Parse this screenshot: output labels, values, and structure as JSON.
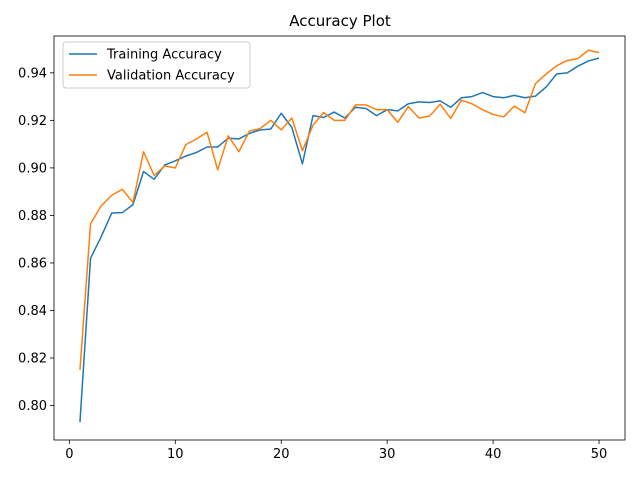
{
  "chart_data": {
    "type": "line",
    "title": "Accuracy Plot",
    "xlabel": "",
    "ylabel": "",
    "xlim": [
      -1.45,
      52.45
    ],
    "ylim": [
      0.7855,
      0.9555
    ],
    "xticks": [
      0,
      10,
      20,
      30,
      40,
      50
    ],
    "yticks": [
      0.8,
      0.82,
      0.84,
      0.86,
      0.88,
      0.9,
      0.92,
      0.94
    ],
    "ytick_labels": [
      "0.80",
      "0.82",
      "0.84",
      "0.86",
      "0.88",
      "0.90",
      "0.92",
      "0.94"
    ],
    "grid": false,
    "legend": "top-left",
    "x": [
      1,
      2,
      3,
      4,
      5,
      6,
      7,
      8,
      9,
      10,
      11,
      12,
      13,
      14,
      15,
      16,
      17,
      18,
      19,
      20,
      21,
      22,
      23,
      24,
      25,
      26,
      27,
      28,
      29,
      30,
      31,
      32,
      33,
      34,
      35,
      36,
      37,
      38,
      39,
      40,
      41,
      42,
      43,
      44,
      45,
      46,
      47,
      48,
      49,
      50
    ],
    "series": [
      {
        "name": "Training Accuracy",
        "color": "#1f77b4",
        "values": [
          0.793,
          0.862,
          0.871,
          0.881,
          0.8812,
          0.8845,
          0.8985,
          0.8952,
          0.9012,
          0.903,
          0.905,
          0.9065,
          0.9088,
          0.9088,
          0.9125,
          0.9122,
          0.9145,
          0.916,
          0.9163,
          0.923,
          0.917,
          0.9017,
          0.922,
          0.9212,
          0.9235,
          0.921,
          0.9255,
          0.925,
          0.922,
          0.9245,
          0.924,
          0.927,
          0.9278,
          0.9275,
          0.9282,
          0.9255,
          0.9295,
          0.93,
          0.9317,
          0.93,
          0.9295,
          0.9305,
          0.9295,
          0.9302,
          0.934,
          0.9395,
          0.94,
          0.9428,
          0.945,
          0.9462
        ]
      },
      {
        "name": "Validation Accuracy",
        "color": "#ff7f0e",
        "values": [
          0.815,
          0.8765,
          0.884,
          0.8885,
          0.891,
          0.8855,
          0.9068,
          0.8968,
          0.9008,
          0.9,
          0.9098,
          0.9122,
          0.915,
          0.8992,
          0.9135,
          0.9068,
          0.9155,
          0.9165,
          0.92,
          0.916,
          0.921,
          0.9072,
          0.918,
          0.9233,
          0.92,
          0.92,
          0.9265,
          0.9265,
          0.9245,
          0.9245,
          0.9192,
          0.9258,
          0.921,
          0.9218,
          0.9268,
          0.9208,
          0.9285,
          0.927,
          0.9245,
          0.9225,
          0.9215,
          0.926,
          0.9232,
          0.9355,
          0.9395,
          0.943,
          0.9452,
          0.946,
          0.9495,
          0.9485
        ]
      }
    ]
  }
}
